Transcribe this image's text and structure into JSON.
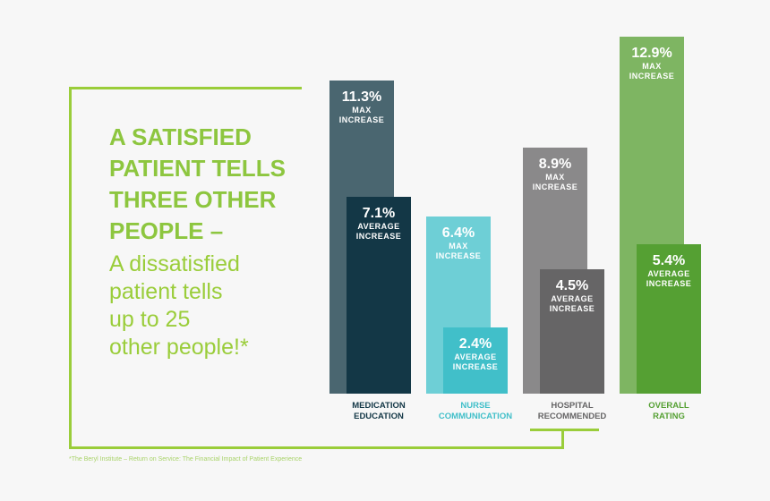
{
  "headline": {
    "lines": [
      "A SATISFIED",
      "PATIENT TELLS",
      "THREE OTHER",
      "PEOPLE –"
    ],
    "sublines": [
      "A dissatisfied",
      "patient tells",
      "up to 25",
      "other people!*"
    ]
  },
  "footnote": "*The Beryl Institute – Return on Service: The Financial Impact of Patient Experience",
  "chart_data": {
    "type": "bar",
    "categories": [
      [
        "MEDICATION",
        "EDUCATION"
      ],
      [
        "NURSE",
        "COMMUNICATION"
      ],
      [
        "HOSPITAL",
        "RECOMMENDED"
      ],
      [
        "OVERALL",
        "RATING"
      ]
    ],
    "series": [
      {
        "name": "MAX INCREASE",
        "values": [
          11.3,
          6.4,
          8.9,
          12.9
        ],
        "labels": [
          "11.3%",
          "6.4%",
          "8.9%",
          "12.9%"
        ],
        "l1": "MAX",
        "l2": "INCREASE"
      },
      {
        "name": "AVERAGE INCREASE",
        "values": [
          7.1,
          2.4,
          4.5,
          5.4
        ],
        "labels": [
          "7.1%",
          "2.4%",
          "4.5%",
          "5.4%"
        ],
        "l1": "AVERAGE",
        "l2": "INCREASE"
      }
    ],
    "colors": {
      "max": [
        "#4a6670",
        "#6ecfd6",
        "#8a898a",
        "#7eb562"
      ],
      "avg": [
        "#133746",
        "#41bfc9",
        "#666566",
        "#55a033"
      ],
      "label": [
        "#133746",
        "#41bfc9",
        "#666566",
        "#55a033"
      ]
    },
    "ylim": [
      0,
      12.9
    ]
  }
}
